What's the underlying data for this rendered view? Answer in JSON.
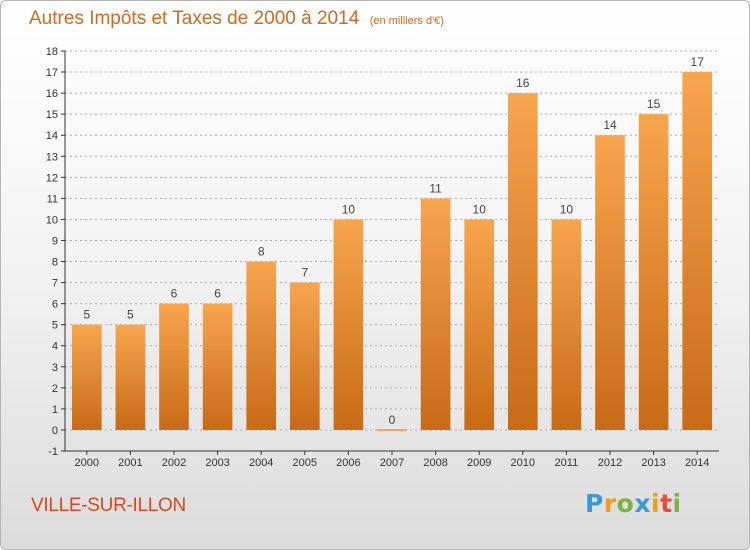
{
  "header": {
    "title": "Autres Impôts et Taxes de 2000 à 2014",
    "unit": "(en milliers d'€)"
  },
  "footer": {
    "commune": "VILLE-SUR-ILLON",
    "brand": [
      "P",
      "r",
      "o",
      "x",
      "i",
      "t",
      "i"
    ]
  },
  "colors": {
    "title": "#d2691e",
    "commune": "#d84a1b",
    "bar_light": "#f7a54e",
    "bar_dark": "#c86a16",
    "axis": "#333333",
    "grid": "#aaaaaa",
    "brand": [
      "#3a9ad9",
      "#f39c12",
      "#7cb342",
      "#3a9ad9",
      "#f39c12",
      "#e74c3c",
      "#7cb342"
    ]
  },
  "chart_data": {
    "type": "bar",
    "title": "Autres Impôts et Taxes de 2000 à 2014",
    "subtitle": "(en milliers d'€)",
    "xlabel": "",
    "ylabel": "",
    "categories": [
      "2000",
      "2001",
      "2002",
      "2003",
      "2004",
      "2005",
      "2006",
      "2007",
      "2008",
      "2009",
      "2010",
      "2011",
      "2012",
      "2013",
      "2014"
    ],
    "values": [
      5,
      5,
      6,
      6,
      8,
      7,
      10,
      0,
      11,
      10,
      16,
      10,
      14,
      15,
      17
    ],
    "ylim": [
      -1,
      18
    ],
    "yticks": [
      -1,
      0,
      1,
      2,
      3,
      4,
      5,
      6,
      7,
      8,
      9,
      10,
      11,
      12,
      13,
      14,
      15,
      16,
      17,
      18
    ],
    "grid": true,
    "data_labels": true
  }
}
